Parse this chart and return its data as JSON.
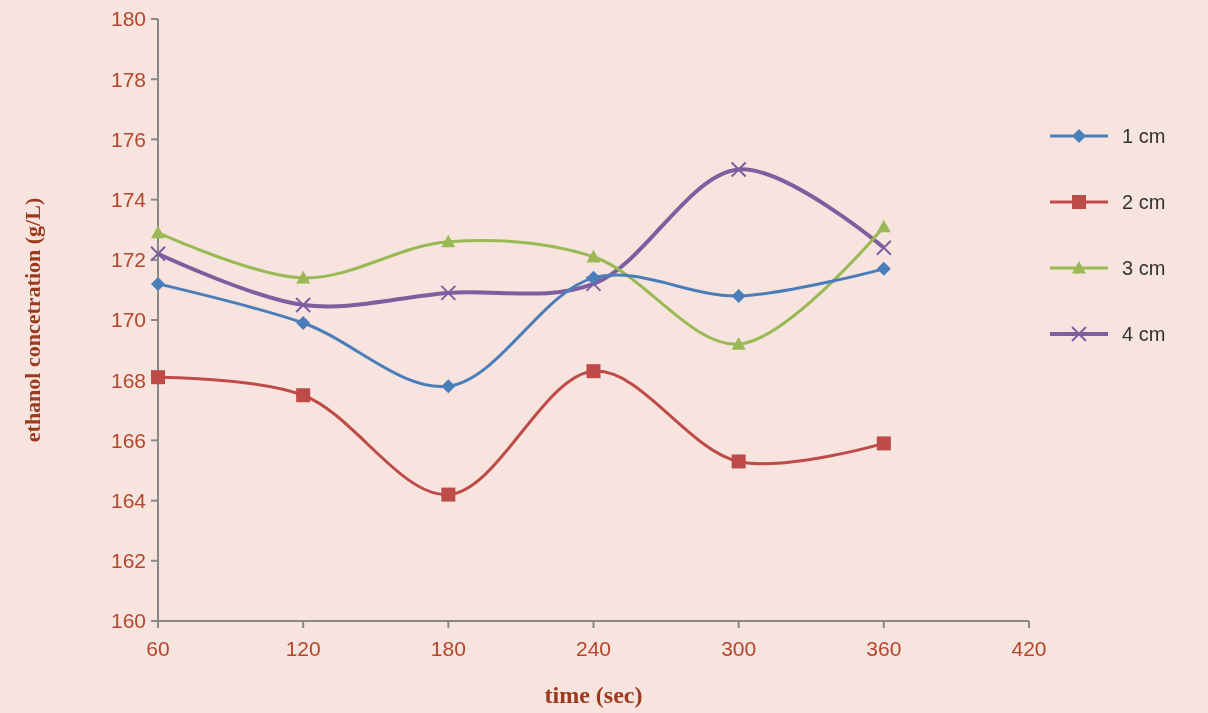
{
  "chart_data": {
    "type": "line",
    "xlabel": "time (sec)",
    "ylabel": "ethanol concetration (g/L)",
    "x": [
      60,
      120,
      180,
      240,
      300,
      360
    ],
    "xlim": [
      60,
      420
    ],
    "xticks": [
      60,
      120,
      180,
      240,
      300,
      360,
      420
    ],
    "ylim": [
      160,
      180
    ],
    "yticks": [
      160,
      162,
      164,
      166,
      168,
      170,
      172,
      174,
      176,
      178,
      180
    ],
    "grid": false,
    "legend": "right",
    "series": [
      {
        "name": "1 cm",
        "color": "#4a7ebb",
        "marker": "diamond",
        "values": [
          171.2,
          169.9,
          167.8,
          171.4,
          170.8,
          171.7
        ]
      },
      {
        "name": "2 cm",
        "color": "#be4b48",
        "marker": "square",
        "values": [
          168.1,
          167.5,
          164.2,
          168.3,
          165.3,
          165.9
        ]
      },
      {
        "name": "3 cm",
        "color": "#98b954",
        "marker": "triangle",
        "values": [
          172.9,
          171.4,
          172.6,
          172.1,
          169.2,
          173.1
        ]
      },
      {
        "name": "4 cm",
        "color": "#7d5fa0",
        "marker": "cross",
        "values": [
          172.2,
          170.5,
          170.9,
          171.2,
          175.0,
          172.4
        ]
      }
    ]
  }
}
